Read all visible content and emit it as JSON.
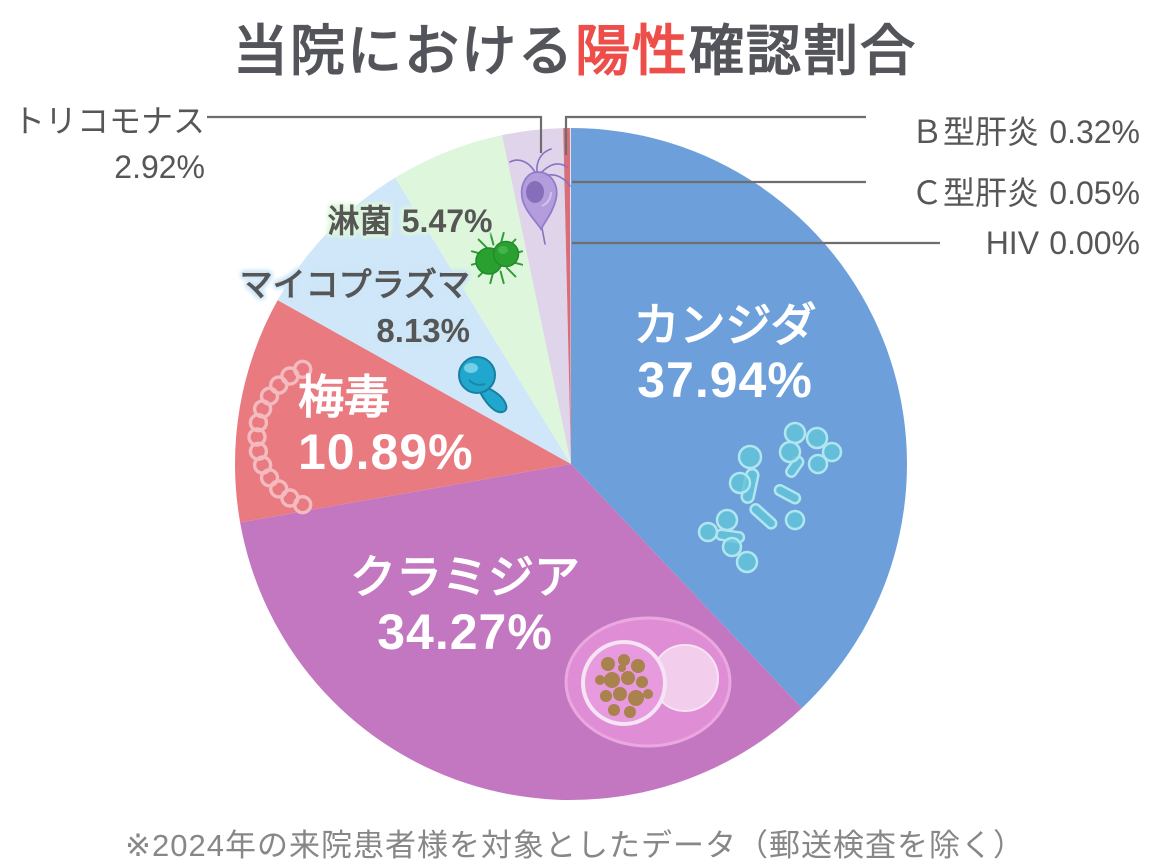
{
  "title": {
    "prefix": "当院における",
    "highlight": "陽性",
    "suffix": "確認割合",
    "full": "当院における陽性確認割合"
  },
  "footnote": "※2024年の来院患者様を対象としたデータ（郵送検査を除く）",
  "colors": {
    "background": "#ffffff",
    "title_text": "#54555a",
    "title_highlight": "#ee4e4a",
    "outer_label_text": "#565656",
    "inner_label_text": "#ffffff",
    "leader_line": "#6e6e6e",
    "footnote_text": "#878787"
  },
  "chart_data": {
    "type": "pie",
    "title": "当院における陽性確認割合",
    "start_angle_deg": 0,
    "direction": "clockwise",
    "legend": "labels-on-and-around-slices",
    "slices": [
      {
        "id": "candida",
        "name": "カンジダ",
        "value": 37.94,
        "pct_label": "37.94%",
        "color": "#6da0da"
      },
      {
        "id": "chlamydia",
        "name": "クラミジア",
        "value": 34.27,
        "pct_label": "34.27%",
        "color": "#c377c1"
      },
      {
        "id": "syphilis",
        "name": "梅毒",
        "value": 10.89,
        "pct_label": "10.89%",
        "color": "#e87a80"
      },
      {
        "id": "mycoplasma",
        "name": "マイコプラズマ",
        "value": 8.13,
        "pct_label": "8.13%",
        "color": "#cfe7f8"
      },
      {
        "id": "gonorrhea",
        "name": "淋菌",
        "value": 5.47,
        "pct_label": "5.47%",
        "color": "#def7dc"
      },
      {
        "id": "trichomonas",
        "name": "トリコモナス",
        "value": 2.92,
        "pct_label": "2.92%",
        "color": "#dfd4ea"
      },
      {
        "id": "hepatitis-b",
        "name": "Ｂ型肝炎",
        "value": 0.32,
        "pct_label": "0.32%",
        "color": "#d96d79"
      },
      {
        "id": "hepatitis-c",
        "name": "Ｃ型肝炎",
        "value": 0.05,
        "pct_label": "0.05%",
        "color": "#e3e2e6"
      },
      {
        "id": "hiv",
        "name": "HIV",
        "value": 0.0,
        "pct_label": "0.00%",
        "color": "#cccccc"
      }
    ]
  },
  "icons": {
    "candida": "candida-yeast-cluster-icon",
    "chlamydia": "chlamydia-inclusion-cell-icon",
    "syphilis": "treponema-spiral-icon",
    "mycoplasma": "mycoplasma-cell-icon",
    "gonorrhea": "neisseria-gonorrhoeae-icon",
    "trichomonas": "trichomonas-protozoan-icon"
  }
}
